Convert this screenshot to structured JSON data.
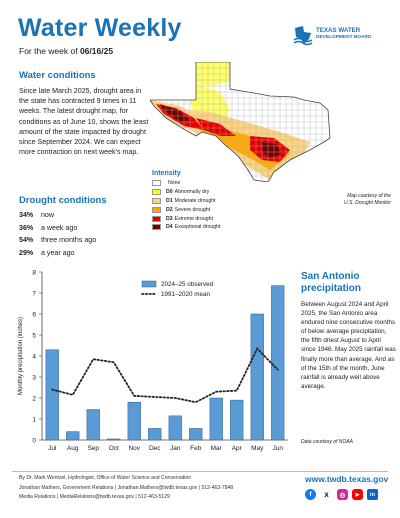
{
  "header": {
    "title": "Water Weekly",
    "week_prefix": "For the week of ",
    "week_date": "06/16/25",
    "logo_line1": "TEXAS WATER",
    "logo_line2": "DEVELOPMENT BOARD"
  },
  "water_conditions": {
    "heading": "Water conditions",
    "text": "Since late March 2025, drought area in the state has contracted 9 times in 11 weeks. The latest drought map, for conditions as of June 10, shows the least amount of the state impacted by drought since September 2024. We can expect more contraction on next week's map."
  },
  "drought_conditions": {
    "heading": "Drought conditions",
    "items": [
      {
        "value": "34%",
        "label": "now"
      },
      {
        "value": "36%",
        "label": "a week ago"
      },
      {
        "value": "54%",
        "label": "three months ago"
      },
      {
        "value": "29%",
        "label": "a year ago"
      }
    ]
  },
  "map_legend": {
    "heading": "Intensity",
    "items": [
      {
        "code": "",
        "label": "None",
        "color": "#ffffff"
      },
      {
        "code": "D0",
        "label": "Abnormally dry",
        "color": "#ffff00"
      },
      {
        "code": "D1",
        "label": "Moderate drought",
        "color": "#fcd37f"
      },
      {
        "code": "D2",
        "label": "Severe drought",
        "color": "#ffaa00"
      },
      {
        "code": "D3",
        "label": "Extreme drought",
        "color": "#e60000"
      },
      {
        "code": "D4",
        "label": "Exceptional drought",
        "color": "#730000"
      }
    ],
    "credit_line1": "Map courtesy of the",
    "credit_line2": "U.S. Drought Monitor"
  },
  "chart_data": {
    "type": "bar",
    "categories": [
      "Jul",
      "Aug",
      "Sep",
      "Oct",
      "Nov",
      "Dec",
      "Jan",
      "Feb",
      "Mar",
      "Apr",
      "May",
      "Jun"
    ],
    "series": [
      {
        "name": "2024–25 observed",
        "type": "bar",
        "color": "#5b9bd5",
        "values": [
          4.3,
          0.4,
          1.45,
          0.05,
          1.8,
          0.55,
          1.15,
          0.55,
          2.0,
          1.9,
          6.0,
          7.35
        ]
      },
      {
        "name": "1991–2020 mean",
        "type": "line",
        "style": "dotted",
        "color": "#222222",
        "values": [
          2.4,
          2.15,
          3.85,
          3.7,
          2.1,
          2.05,
          2.0,
          1.8,
          2.3,
          2.35,
          4.35,
          3.35
        ]
      }
    ],
    "ylabel": "Monthly precipitation (inches)",
    "xlabel": "",
    "ylim": [
      0,
      8
    ],
    "yticks": [
      0,
      1,
      2,
      3,
      4,
      5,
      6,
      7,
      8
    ],
    "legend_position": "top-right"
  },
  "san_antonio": {
    "heading_line1": "San Antonio",
    "heading_line2": "precipitation",
    "text": "Between August 2024 and April 2025, the San Antonio area endured nine consecutive months of below average precipitation, the fifth driest August to April since 1946. May 2025 rainfall was finally more than average. And as of the 15th of the month, June rainfall is already well above average.",
    "credit": "Data courtesy of NOAA"
  },
  "footer": {
    "author": "By Dr. Mark Wentzel, Hydrologist, Office of Water Science and Conservation",
    "contact1": "Jonathan Mathers, Government Relations | Jonathan.Mathers@twdb.texas.gov | 512-463-7848",
    "contact2": "Media Relations | MediaRelations@twdb.texas.gov | 512-463-5129",
    "url": "www.twdb.texas.gov",
    "social_icons": [
      {
        "name": "facebook-icon",
        "color": "#1877f2",
        "glyph": "f"
      },
      {
        "name": "x-icon",
        "color": "#000000",
        "glyph": "X"
      },
      {
        "name": "instagram-icon",
        "color": "#d6249f",
        "glyph": "◎"
      },
      {
        "name": "youtube-icon",
        "color": "#ff0000",
        "glyph": "▶"
      },
      {
        "name": "linkedin-icon",
        "color": "#0a66c2",
        "glyph": "in"
      }
    ]
  }
}
